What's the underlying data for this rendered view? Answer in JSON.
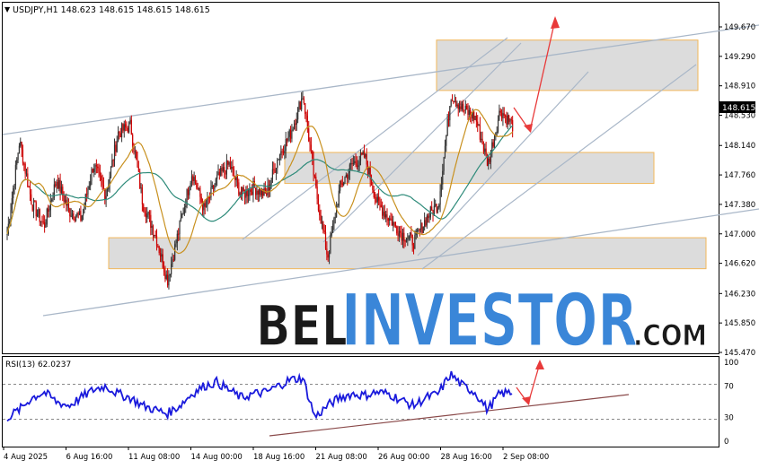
{
  "header": {
    "symbol_title": "USDJPY,H1  148.623 148.615 148.615 148.615",
    "rsi_title": "RSI(13) 62.0237"
  },
  "watermark": {
    "part1": "BEL",
    "part2": "INVESTOR",
    "part3": ".COM"
  },
  "colors": {
    "bull": "#333333",
    "bear": "#cc0000",
    "ma_fast": "#c8901e",
    "ma_slow": "#2e8b7a",
    "trend": "#a9b7c8",
    "zone_fill": "#dcdcdc",
    "zone_border": "#f2b75a",
    "arrow": "#e83a3a",
    "rsi": "#1a1adc",
    "rsi_trend": "#8a4a4a",
    "wm_dark": "#1a1a1a",
    "wm_blue": "#3a86d8"
  },
  "chart_data": [
    {
      "type": "candlestick",
      "title": "USDJPY,H1",
      "ylim": [
        145.47,
        149.9
      ],
      "current_price": 148.615,
      "y_ticks": [
        "149.670",
        "149.290",
        "148.910",
        "148.530",
        "148.140",
        "147.760",
        "147.380",
        "147.000",
        "146.620",
        "146.230",
        "145.850",
        "145.470"
      ],
      "x_ticks": [
        "4 Aug 2025",
        "6 Aug 16:00",
        "11 Aug 08:00",
        "14 Aug 00:00",
        "18 Aug 16:00",
        "21 Aug 08:00",
        "26 Aug 00:00",
        "28 Aug 16:00",
        "2 Sep 08:00"
      ],
      "price_path_approx": [
        147.0,
        148.2,
        147.4,
        147.1,
        147.7,
        147.3,
        147.2,
        147.9,
        147.5,
        148.3,
        148.4,
        147.4,
        147.0,
        146.4,
        147.1,
        147.8,
        147.3,
        147.7,
        147.9,
        147.5,
        147.6,
        147.5,
        148.0,
        148.3,
        148.8,
        147.6,
        146.7,
        147.6,
        147.9,
        148.0,
        147.4,
        147.2,
        147.0,
        146.9,
        147.2,
        147.4,
        148.8,
        148.6,
        148.5,
        147.9,
        148.6,
        148.4
      ],
      "zones": [
        [
          148.85,
          149.5
        ],
        [
          147.65,
          148.05
        ],
        [
          146.55,
          146.95
        ]
      ]
    },
    {
      "type": "line",
      "title": "RSI(13)",
      "ylim": [
        0,
        100
      ],
      "y_ticks": [
        100,
        70,
        30,
        0
      ],
      "current_value": 62.0237,
      "values_approx": [
        30,
        40,
        55,
        62,
        50,
        45,
        55,
        65,
        70,
        60,
        55,
        45,
        40,
        35,
        45,
        60,
        70,
        75,
        65,
        55,
        60,
        62,
        70,
        78,
        80,
        30,
        45,
        55,
        60,
        58,
        62,
        60,
        52,
        45,
        55,
        60,
        85,
        70,
        62,
        40,
        60,
        62
      ]
    }
  ]
}
